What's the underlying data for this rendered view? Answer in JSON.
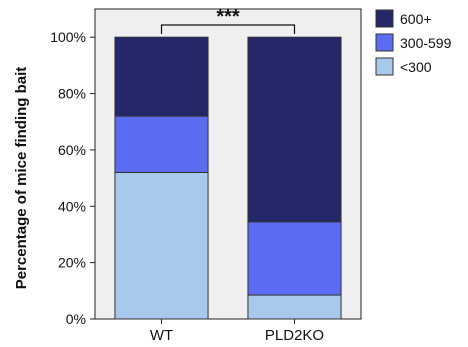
{
  "chart_data": {
    "type": "bar",
    "stacked": true,
    "percent_stacked": true,
    "categories": [
      "WT",
      "PLD2KO"
    ],
    "series": [
      {
        "name": "<300",
        "values": [
          52,
          8.5
        ],
        "color": "#a8c8ec"
      },
      {
        "name": "300-599",
        "values": [
          20,
          26
        ],
        "color": "#5b6cf2"
      },
      {
        "name": "600+",
        "values": [
          28,
          65.5
        ],
        "color": "#242868"
      }
    ],
    "ylabel": "Percentage of mice finding bait",
    "xlabel": "",
    "ylim": [
      0,
      110
    ],
    "y_ticks": [
      {
        "value": 0,
        "label": "0%"
      },
      {
        "value": 20,
        "label": "20%"
      },
      {
        "value": 40,
        "label": "40%"
      },
      {
        "value": 60,
        "label": "60%"
      },
      {
        "value": 80,
        "label": "80%"
      },
      {
        "value": 100,
        "label": "100%"
      }
    ],
    "significance": {
      "label": "***",
      "between": [
        "WT",
        "PLD2KO"
      ]
    },
    "legend": {
      "placement": "right",
      "entries": [
        {
          "label": "600+",
          "color": "#242868"
        },
        {
          "label": "300-599",
          "color": "#5b6cf2"
        },
        {
          "label": "<300",
          "color": "#a8c8ec"
        }
      ]
    },
    "plot_background": "#efefef",
    "grid": false
  }
}
